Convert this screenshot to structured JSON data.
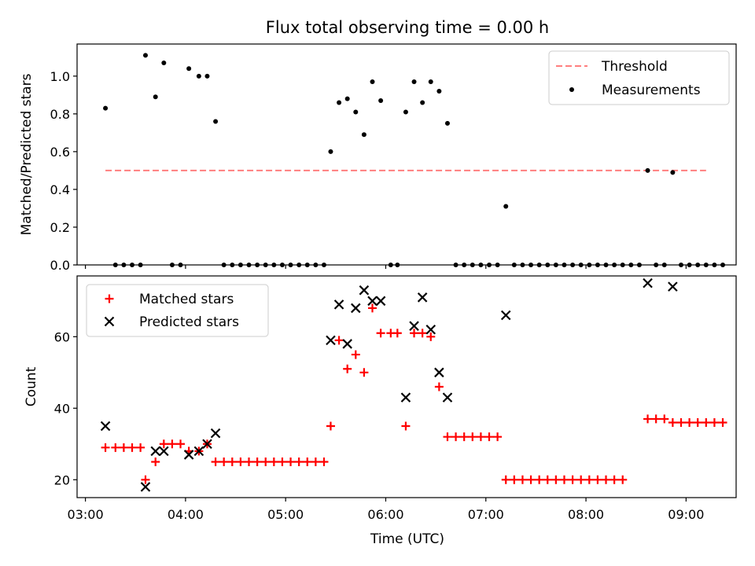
{
  "chart_data": [
    {
      "type": "scatter",
      "title": "Flux total observing time = 0.00 h",
      "xlabel": "",
      "ylabel": "Matched/Predicted stars",
      "xlim": [
        "02:55",
        "09:30"
      ],
      "ylim": [
        0,
        1.17
      ],
      "x_ticks": [
        "03:00",
        "04:00",
        "05:00",
        "06:00",
        "07:00",
        "08:00",
        "09:00"
      ],
      "y_ticks": [
        "0.0",
        "0.2",
        "0.4",
        "0.6",
        "0.8",
        "1.0"
      ],
      "legend_position": "upper right",
      "threshold": {
        "name": "Threshold",
        "value": 0.5,
        "x_range": [
          "03:12",
          "09:12"
        ],
        "color": "#ff7f7f",
        "style": "dashed"
      },
      "series": [
        {
          "name": "Measurements",
          "color": "#000000",
          "points": [
            [
              "03:12",
              0.83
            ],
            [
              "03:18",
              0
            ],
            [
              "03:23",
              0
            ],
            [
              "03:28",
              0
            ],
            [
              "03:33",
              0
            ],
            [
              "03:36",
              1.11
            ],
            [
              "03:42",
              0.89
            ],
            [
              "03:47",
              1.07
            ],
            [
              "03:52",
              0
            ],
            [
              "03:57",
              0
            ],
            [
              "04:02",
              1.04
            ],
            [
              "04:08",
              1.0
            ],
            [
              "04:13",
              1.0
            ],
            [
              "04:18",
              0.76
            ],
            [
              "04:23",
              0
            ],
            [
              "04:28",
              0
            ],
            [
              "04:33",
              0
            ],
            [
              "04:38",
              0
            ],
            [
              "04:43",
              0
            ],
            [
              "04:48",
              0
            ],
            [
              "04:53",
              0
            ],
            [
              "04:58",
              0
            ],
            [
              "05:03",
              0
            ],
            [
              "05:08",
              0
            ],
            [
              "05:13",
              0
            ],
            [
              "05:18",
              0
            ],
            [
              "05:23",
              0
            ],
            [
              "05:27",
              0.6
            ],
            [
              "05:32",
              0.86
            ],
            [
              "05:37",
              0.88
            ],
            [
              "05:42",
              0.81
            ],
            [
              "05:47",
              0.69
            ],
            [
              "05:52",
              0.97
            ],
            [
              "05:57",
              0.87
            ],
            [
              "06:03",
              0
            ],
            [
              "06:07",
              0
            ],
            [
              "06:12",
              0.81
            ],
            [
              "06:17",
              0.97
            ],
            [
              "06:22",
              0.86
            ],
            [
              "06:27",
              0.97
            ],
            [
              "06:32",
              0.92
            ],
            [
              "06:37",
              0.75
            ],
            [
              "06:42",
              0
            ],
            [
              "06:47",
              0
            ],
            [
              "06:52",
              0
            ],
            [
              "06:57",
              0
            ],
            [
              "07:02",
              0
            ],
            [
              "07:07",
              0
            ],
            [
              "07:12",
              0.31
            ],
            [
              "07:17",
              0
            ],
            [
              "07:22",
              0
            ],
            [
              "07:27",
              0
            ],
            [
              "07:32",
              0
            ],
            [
              "07:37",
              0
            ],
            [
              "07:42",
              0
            ],
            [
              "07:47",
              0
            ],
            [
              "07:52",
              0
            ],
            [
              "07:57",
              0
            ],
            [
              "08:02",
              0
            ],
            [
              "08:07",
              0
            ],
            [
              "08:12",
              0
            ],
            [
              "08:17",
              0
            ],
            [
              "08:22",
              0
            ],
            [
              "08:27",
              0
            ],
            [
              "08:32",
              0
            ],
            [
              "08:37",
              0.5
            ],
            [
              "08:42",
              0
            ],
            [
              "08:47",
              0
            ],
            [
              "08:52",
              0.49
            ],
            [
              "08:57",
              0
            ],
            [
              "09:02",
              0
            ],
            [
              "09:07",
              0
            ],
            [
              "09:12",
              0
            ],
            [
              "09:17",
              0
            ],
            [
              "09:22",
              0
            ]
          ]
        }
      ]
    },
    {
      "type": "scatter",
      "title": "",
      "xlabel": "Time (UTC)",
      "ylabel": "Count",
      "xlim": [
        "02:55",
        "09:30"
      ],
      "ylim": [
        15,
        77
      ],
      "x_ticks": [
        "03:00",
        "04:00",
        "05:00",
        "06:00",
        "07:00",
        "08:00",
        "09:00"
      ],
      "y_ticks": [
        "20",
        "40",
        "60"
      ],
      "legend_position": "upper left",
      "series": [
        {
          "name": "Matched stars",
          "marker": "+",
          "color": "#ff0000",
          "points": [
            [
              "03:12",
              29
            ],
            [
              "03:18",
              29
            ],
            [
              "03:23",
              29
            ],
            [
              "03:28",
              29
            ],
            [
              "03:33",
              29
            ],
            [
              "03:36",
              20
            ],
            [
              "03:42",
              25
            ],
            [
              "03:47",
              30
            ],
            [
              "03:52",
              30
            ],
            [
              "03:57",
              30
            ],
            [
              "04:02",
              28
            ],
            [
              "04:08",
              28
            ],
            [
              "04:13",
              30
            ],
            [
              "04:18",
              25
            ],
            [
              "04:23",
              25
            ],
            [
              "04:28",
              25
            ],
            [
              "04:33",
              25
            ],
            [
              "04:38",
              25
            ],
            [
              "04:43",
              25
            ],
            [
              "04:48",
              25
            ],
            [
              "04:53",
              25
            ],
            [
              "04:58",
              25
            ],
            [
              "05:03",
              25
            ],
            [
              "05:08",
              25
            ],
            [
              "05:13",
              25
            ],
            [
              "05:18",
              25
            ],
            [
              "05:23",
              25
            ],
            [
              "05:27",
              35
            ],
            [
              "05:32",
              59
            ],
            [
              "05:37",
              51
            ],
            [
              "05:42",
              55
            ],
            [
              "05:47",
              50
            ],
            [
              "05:52",
              68
            ],
            [
              "05:57",
              61
            ],
            [
              "06:03",
              61
            ],
            [
              "06:07",
              61
            ],
            [
              "06:12",
              35
            ],
            [
              "06:17",
              61
            ],
            [
              "06:22",
              61
            ],
            [
              "06:27",
              60
            ],
            [
              "06:32",
              46
            ],
            [
              "06:37",
              32
            ],
            [
              "06:42",
              32
            ],
            [
              "06:47",
              32
            ],
            [
              "06:52",
              32
            ],
            [
              "06:57",
              32
            ],
            [
              "07:02",
              32
            ],
            [
              "07:07",
              32
            ],
            [
              "07:12",
              20
            ],
            [
              "07:17",
              20
            ],
            [
              "07:22",
              20
            ],
            [
              "07:27",
              20
            ],
            [
              "07:32",
              20
            ],
            [
              "07:37",
              20
            ],
            [
              "07:42",
              20
            ],
            [
              "07:47",
              20
            ],
            [
              "07:52",
              20
            ],
            [
              "07:57",
              20
            ],
            [
              "08:02",
              20
            ],
            [
              "08:07",
              20
            ],
            [
              "08:12",
              20
            ],
            [
              "08:17",
              20
            ],
            [
              "08:22",
              20
            ],
            [
              "08:37",
              37
            ],
            [
              "08:42",
              37
            ],
            [
              "08:47",
              37
            ],
            [
              "08:52",
              36
            ],
            [
              "08:57",
              36
            ],
            [
              "09:02",
              36
            ],
            [
              "09:07",
              36
            ],
            [
              "09:12",
              36
            ],
            [
              "09:17",
              36
            ],
            [
              "09:22",
              36
            ]
          ]
        },
        {
          "name": "Predicted stars",
          "marker": "x",
          "color": "#000000",
          "points": [
            [
              "03:12",
              35
            ],
            [
              "03:36",
              18
            ],
            [
              "03:42",
              28
            ],
            [
              "03:47",
              28
            ],
            [
              "04:02",
              27
            ],
            [
              "04:08",
              28
            ],
            [
              "04:13",
              30
            ],
            [
              "04:18",
              33
            ],
            [
              "05:27",
              59
            ],
            [
              "05:32",
              69
            ],
            [
              "05:37",
              58
            ],
            [
              "05:42",
              68
            ],
            [
              "05:47",
              73
            ],
            [
              "05:52",
              70
            ],
            [
              "05:57",
              70
            ],
            [
              "06:12",
              43
            ],
            [
              "06:17",
              63
            ],
            [
              "06:22",
              71
            ],
            [
              "06:27",
              62
            ],
            [
              "06:32",
              50
            ],
            [
              "06:37",
              43
            ],
            [
              "07:12",
              66
            ],
            [
              "08:37",
              75
            ],
            [
              "08:52",
              74
            ]
          ]
        }
      ]
    }
  ]
}
